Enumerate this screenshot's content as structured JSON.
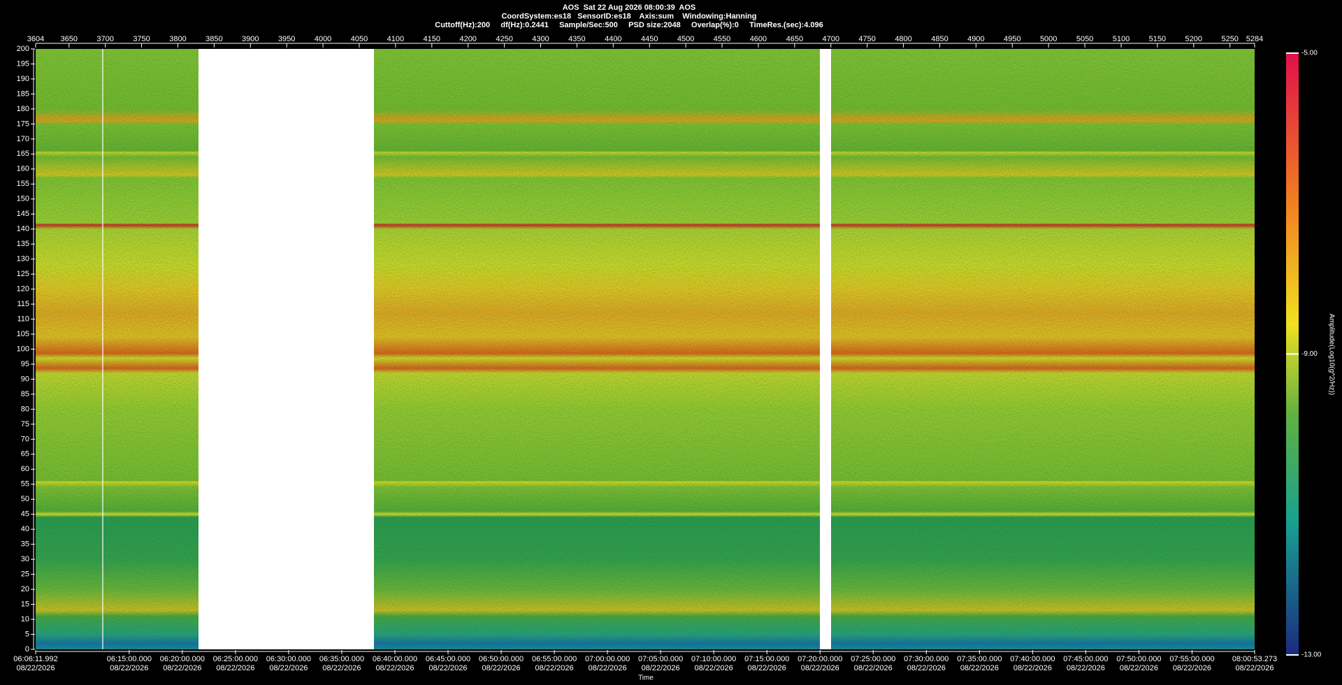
{
  "chart_data": {
    "type": "spectrogram",
    "title_lines": [
      "AOS  Sat 22 Aug 2026 08:00:39  AOS",
      "CoordSystem:es18   SensorID:es18    Axis:sum    Windowing:Hanning",
      "Cuttoff(Hz):200     df(Hz):0.2441     Sample/Sec:500     PSD size:2048     Overlap(%):0     TimeRes.(sec):4.096"
    ],
    "xlabel": "Time",
    "xlim": [
      3604,
      5284
    ],
    "xticks": [
      3604,
      3650,
      3700,
      3750,
      3800,
      3850,
      3900,
      3950,
      4000,
      4050,
      4100,
      4150,
      4200,
      4250,
      4300,
      4350,
      4400,
      4450,
      4500,
      4550,
      4600,
      4650,
      4700,
      4750,
      4800,
      4850,
      4900,
      4950,
      5000,
      5050,
      5100,
      5150,
      5200,
      5250,
      5284
    ],
    "time_ticks": [
      {
        "value": 3604,
        "label": "06:06:11.992",
        "date": "08/22/2026"
      },
      {
        "value": 3732.91,
        "label": "06:15:00.000",
        "date": "08/22/2026"
      },
      {
        "value": 3806.15,
        "label": "06:20:00.000",
        "date": "08/22/2026"
      },
      {
        "value": 3879.39,
        "label": "06:25:00.000",
        "date": "08/22/2026"
      },
      {
        "value": 3952.63,
        "label": "06:30:00.000",
        "date": "08/22/2026"
      },
      {
        "value": 4025.88,
        "label": "06:35:00.000",
        "date": "08/22/2026"
      },
      {
        "value": 4099.12,
        "label": "06:40:00.000",
        "date": "08/22/2026"
      },
      {
        "value": 4172.36,
        "label": "06:45:00.000",
        "date": "08/22/2026"
      },
      {
        "value": 4245.6,
        "label": "06:50:00.000",
        "date": "08/22/2026"
      },
      {
        "value": 4318.85,
        "label": "06:55:00.000",
        "date": "08/22/2026"
      },
      {
        "value": 4392.09,
        "label": "07:00:00.000",
        "date": "08/22/2026"
      },
      {
        "value": 4465.33,
        "label": "07:05:00.000",
        "date": "08/22/2026"
      },
      {
        "value": 4538.57,
        "label": "07:10:00.000",
        "date": "08/22/2026"
      },
      {
        "value": 4611.82,
        "label": "07:15:00.000",
        "date": "08/22/2026"
      },
      {
        "value": 4685.06,
        "label": "07:20:00.000",
        "date": "08/22/2026"
      },
      {
        "value": 4758.3,
        "label": "07:25:00.000",
        "date": "08/22/2026"
      },
      {
        "value": 4831.54,
        "label": "07:30:00.000",
        "date": "08/22/2026"
      },
      {
        "value": 4904.79,
        "label": "07:35:00.000",
        "date": "08/22/2026"
      },
      {
        "value": 4978.03,
        "label": "07:40:00.000",
        "date": "08/22/2026"
      },
      {
        "value": 5051.27,
        "label": "07:45:00.000",
        "date": "08/22/2026"
      },
      {
        "value": 5124.51,
        "label": "07:50:00.000",
        "date": "08/22/2026"
      },
      {
        "value": 5197.75,
        "label": "07:55:00.000",
        "date": "08/22/2026"
      },
      {
        "value": 5284,
        "label": "08:00:53.273",
        "date": "08/22/2026"
      }
    ],
    "ylim": [
      0,
      200
    ],
    "yticks": [
      0,
      5,
      10,
      15,
      20,
      25,
      30,
      35,
      40,
      45,
      50,
      55,
      60,
      65,
      70,
      75,
      80,
      85,
      90,
      95,
      100,
      105,
      110,
      115,
      120,
      125,
      130,
      135,
      140,
      145,
      150,
      155,
      160,
      165,
      170,
      175,
      180,
      185,
      190,
      195,
      200
    ],
    "colorbar": {
      "title": "Amplitude(Log10(g^2/Hz))",
      "lim": [
        -13,
        -5
      ],
      "ticks": [
        {
          "value": -5,
          "label": "-5.00"
        },
        {
          "value": -9,
          "label": "-9.00"
        },
        {
          "value": -13,
          "label": "-13.00"
        }
      ]
    }
  }
}
